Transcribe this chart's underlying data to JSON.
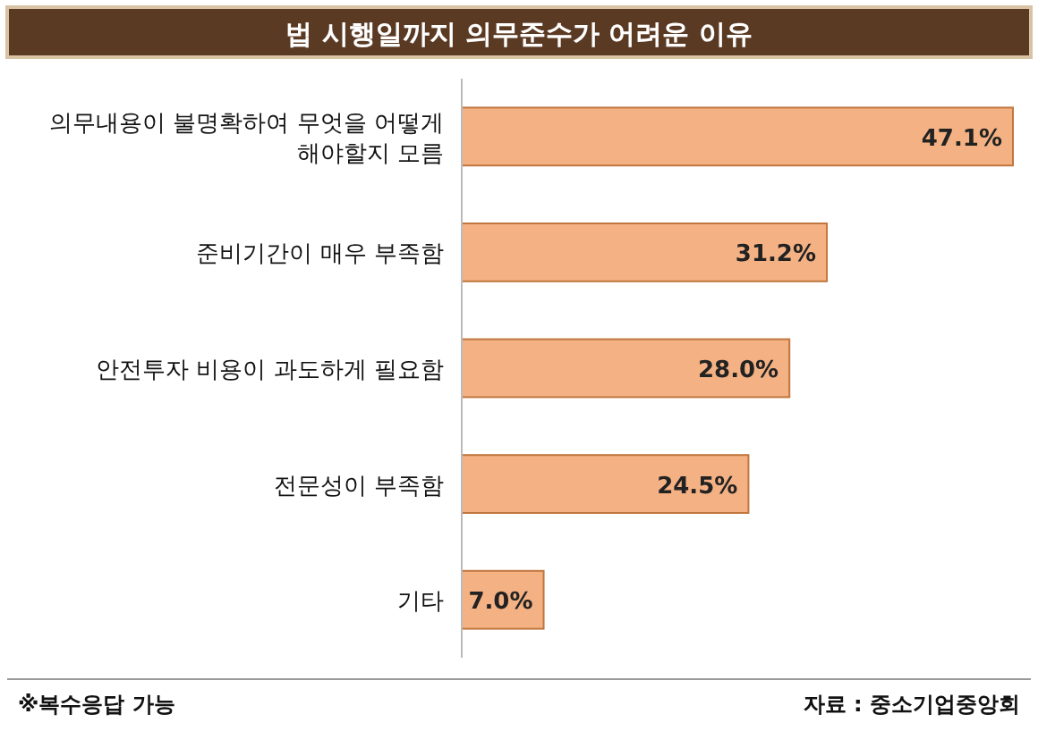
{
  "chart_data": {
    "type": "bar",
    "orientation": "horizontal",
    "title": "법 시행일까지 의무준수가 어려운 이유",
    "categories": [
      "의무내용이 불명확하여 무엇을 어떻게 해야할지 모름",
      "준비기간이 매우 부족함",
      "안전투자 비용이 과도하게 필요함",
      "전문성이 부족함",
      "기타"
    ],
    "values": [
      47.1,
      31.2,
      28.0,
      24.5,
      7.0
    ],
    "value_labels": [
      "47.1%",
      "31.2%",
      "28.0%",
      "24.5%",
      "7.0%"
    ],
    "color": "#f4b183",
    "annotations": [
      "※복수응답 가능",
      "자료 : 중소기업중앙회"
    ]
  }
}
